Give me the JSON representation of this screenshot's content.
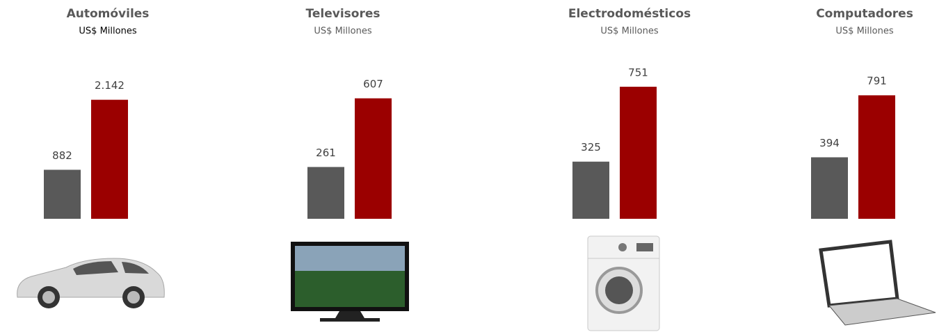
{
  "chart_data": [
    {
      "type": "bar",
      "title": "Automóviles",
      "subtitle": "US$ Millones",
      "values": [
        882,
        2142
      ],
      "value_labels": [
        "882",
        "2.142"
      ],
      "colors": [
        "#595959",
        "#9b0000"
      ],
      "ylim": [
        0,
        2500
      ]
    },
    {
      "type": "bar",
      "title": "Televisores",
      "subtitle": "US$ Millones",
      "values": [
        261,
        607
      ],
      "colors": [
        "#595959",
        "#9b0000"
      ],
      "ylim": [
        0,
        700
      ]
    },
    {
      "type": "bar",
      "title": "Electrodomésticos",
      "subtitle": "US$ Millones",
      "values": [
        325,
        751
      ],
      "colors": [
        "#595959",
        "#9b0000"
      ],
      "ylim": [
        0,
        790
      ]
    },
    {
      "type": "bar",
      "title": "Computadores",
      "subtitle": "US$ Millones",
      "values": [
        394,
        791
      ],
      "colors": [
        "#595959",
        "#9b0000"
      ],
      "ylim": [
        0,
        890
      ]
    }
  ]
}
